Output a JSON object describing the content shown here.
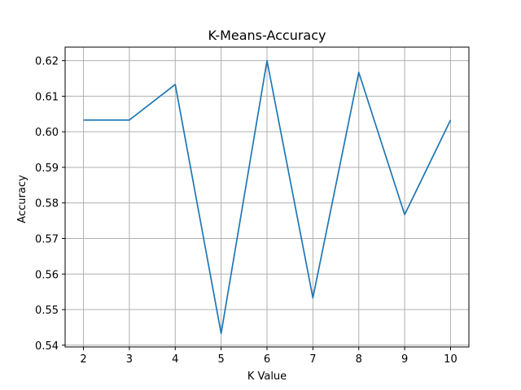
{
  "chart_data": {
    "type": "line",
    "title": "K-Means-Accuracy",
    "xlabel": "K Value",
    "ylabel": "Accuracy",
    "x": [
      2,
      3,
      4,
      5,
      6,
      7,
      8,
      9,
      10
    ],
    "series": [
      {
        "values": [
          0.6033,
          0.6033,
          0.6133,
          0.5433,
          0.62,
          0.5533,
          0.6167,
          0.5767,
          0.6033
        ],
        "color": "#1f77b4"
      }
    ],
    "xticks": [
      "2",
      "3",
      "4",
      "5",
      "6",
      "7",
      "8",
      "9",
      "10"
    ],
    "yticks": [
      "0.54",
      "0.55",
      "0.56",
      "0.57",
      "0.58",
      "0.59",
      "0.60",
      "0.61",
      "0.62"
    ],
    "xlim": [
      1.6,
      10.4
    ],
    "ylim": [
      0.5395,
      0.6238
    ],
    "grid": true,
    "legend": "none",
    "grid_color": "#b0b0b0",
    "axis_color": "#000000"
  }
}
